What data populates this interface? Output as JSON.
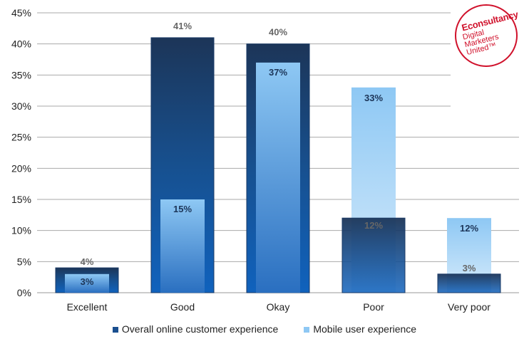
{
  "chart_data": {
    "type": "bar",
    "categories": [
      "Excellent",
      "Good",
      "Okay",
      "Poor",
      "Very poor"
    ],
    "series": [
      {
        "name": "Overall online customer experience",
        "values": [
          4,
          41,
          40,
          12,
          3
        ],
        "color": "#1a4f8f"
      },
      {
        "name": "Mobile user experience",
        "values": [
          3,
          15,
          37,
          33,
          12
        ],
        "color": "#8ec8f4"
      }
    ],
    "ylim": [
      0,
      45
    ],
    "yticks": [
      "0%",
      "5%",
      "10%",
      "15%",
      "20%",
      "25%",
      "30%",
      "35%",
      "40%",
      "45%"
    ],
    "grid": true,
    "legend": "bottom"
  },
  "logo": {
    "brand": "Econsultancy",
    "tagline": [
      "Digital",
      "Marketers",
      "United™"
    ]
  }
}
